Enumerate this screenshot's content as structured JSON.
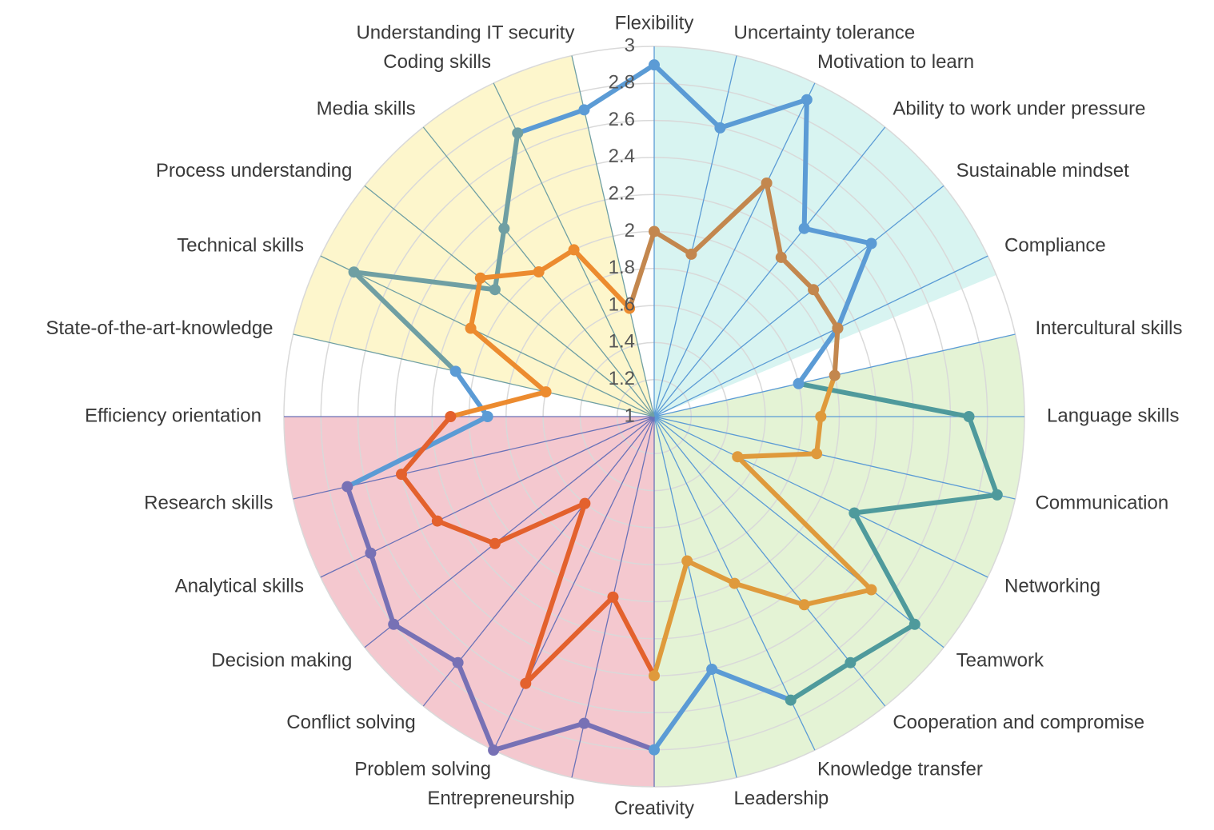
{
  "chart_data": {
    "type": "radar",
    "categories": [
      "Flexibility",
      "Uncertainty tolerance",
      "Motivation to learn",
      "Ability to work under pressure",
      "Sustainable mindset",
      "Compliance",
      "Intercultural skills",
      "Language skills",
      "Communication",
      "Networking",
      "Teamwork",
      "Cooperation and compromise",
      "Knowledge transfer",
      "Leadership",
      "Creativity",
      "Entrepreneurship",
      "Problem solving",
      "Conflict solving",
      "Decision making",
      "Analytical skills",
      "Research skills",
      "Efficiency orientation",
      "State-of-the-art-knowledge",
      "Technical skills",
      "Process understanding",
      "Media skills",
      "Coding skills",
      "Understanding IT security"
    ],
    "rlim": [
      1,
      3
    ],
    "rticks": [
      1,
      1.2,
      1.4,
      1.6,
      1.8,
      2,
      2.2,
      2.4,
      2.6,
      2.8,
      3
    ],
    "grid": true,
    "series": [
      {
        "values": [
          2.9,
          2.6,
          2.9,
          2.3,
          2.5,
          2.1,
          1.8,
          2.7,
          2.9,
          2.2,
          2.8,
          2.7,
          2.7,
          2.4,
          2.8,
          2.7,
          3,
          2.7,
          2.8,
          2.7,
          2.7,
          1.9,
          2.1,
          2.8,
          2.1,
          2.3,
          2.7,
          2.7
        ],
        "colors": [
          "#5b9bd5",
          "#5b9bd5",
          "#5b9bd5",
          "#5b9bd5",
          "#5b9bd5",
          "#5b9bd5",
          "#5b9bd5",
          "#4f9a9c",
          "#4f9a9c",
          "#4f9a9c",
          "#4f9a9c",
          "#4f9a9c",
          "#4f9a9c",
          "#5b9bd5",
          "#5b9bd5",
          "#7771b5",
          "#7771b5",
          "#7771b5",
          "#7771b5",
          "#7771b5",
          "#7771b5",
          "#5b9bd5",
          "#5b9bd5",
          "#6f9fa3",
          "#6f9fa3",
          "#6f9fa3",
          "#6f9fa3",
          "#5b9bd5"
        ]
      },
      {
        "values": [
          2,
          1.9,
          2.4,
          2.1,
          2.1,
          2.1,
          2,
          1.9,
          1.9,
          1.5,
          2.5,
          2.3,
          2,
          1.8,
          2.4,
          2,
          2.6,
          1.6,
          2.1,
          2.3,
          2.4,
          2.1,
          1.6,
          2.1,
          2.2,
          2,
          2,
          1.6
        ],
        "colors": [
          "#c3874e",
          "#c3874e",
          "#c3874e",
          "#c3874e",
          "#c3874e",
          "#c3874e",
          "#c3874e",
          "#df9a3c",
          "#df9a3c",
          "#df9a3c",
          "#df9a3c",
          "#df9a3c",
          "#df9a3c",
          "#df9a3c",
          "#df9a3c",
          "#e3612d",
          "#e3612d",
          "#e3612d",
          "#e3612d",
          "#e3612d",
          "#e3612d",
          "#e3612d",
          "#ec8b2f",
          "#ec8b2f",
          "#ec8b2f",
          "#ec8b2f",
          "#ec8b2f",
          "#ec8b2f"
        ]
      }
    ]
  }
}
